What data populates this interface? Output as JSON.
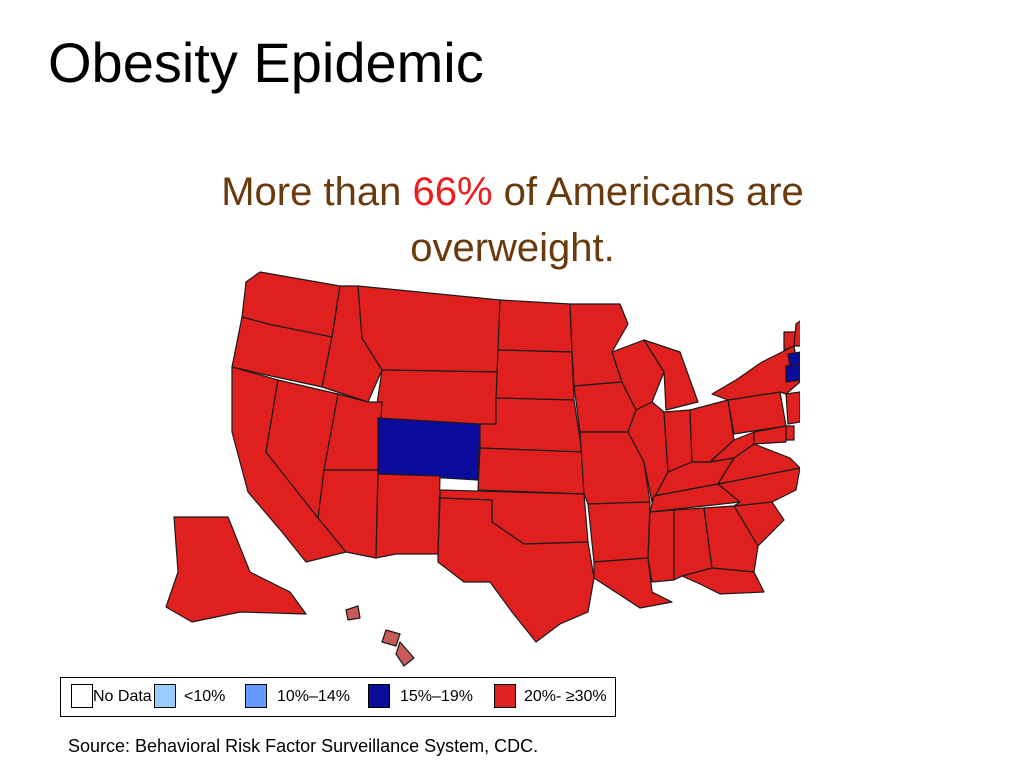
{
  "slide": {
    "title": "Obesity Epidemic",
    "subtitle_prefix": "More than ",
    "subtitle_highlight": "66%",
    "subtitle_suffix": " of Americans are overweight.",
    "source": "Source: Behavioral Risk Factor Surveillance System, CDC."
  },
  "map": {
    "stroke_color": "#1a1a1a",
    "highlighted_states": [
      "Colorado",
      "Connecticut",
      "Massachusetts"
    ],
    "state_fills": {
      "default": "#e0201e",
      "Colorado": "#0b0b9c",
      "Connecticut": "#0b0b9c",
      "Massachusetts": "#0b0b9c",
      "Hawaii": "#c85a5a"
    }
  },
  "legend": {
    "items": [
      {
        "label": "No Data",
        "color": "#ffffff"
      },
      {
        "label": "<10%",
        "color": "#99ccff"
      },
      {
        "label": "10%–14%",
        "color": "#6699ff"
      },
      {
        "label": "15%–19%",
        "color": "#0b0b9c"
      },
      {
        "label": "20%- ≥30%",
        "color": "#e0201e"
      }
    ]
  }
}
